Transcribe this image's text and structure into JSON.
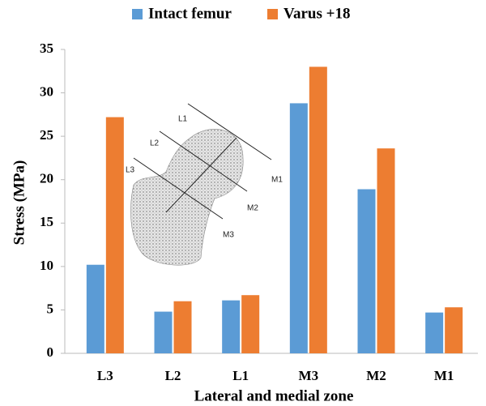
{
  "chart_data": {
    "type": "bar",
    "x_label": "Lateral and medial zone",
    "y_label": "Stress (MPa)",
    "categories": [
      "L3",
      "L2",
      "L1",
      "M3",
      "M2",
      "M1"
    ],
    "series": [
      {
        "name": "Intact femur",
        "color": "#5b9bd5",
        "values": [
          10.2,
          4.8,
          6.1,
          28.8,
          18.9,
          4.7
        ]
      },
      {
        "name": "Varus +18",
        "color": "#ed7d31",
        "values": [
          27.2,
          6.0,
          6.7,
          33.0,
          23.6,
          5.3
        ]
      }
    ],
    "ylim": [
      0,
      35
    ],
    "yticks": [
      0,
      5,
      10,
      15,
      20,
      25,
      30,
      35
    ],
    "grid": false,
    "legend": "top",
    "annotations": [
      "L1",
      "L2",
      "L3",
      "M1",
      "M2",
      "M3"
    ]
  }
}
